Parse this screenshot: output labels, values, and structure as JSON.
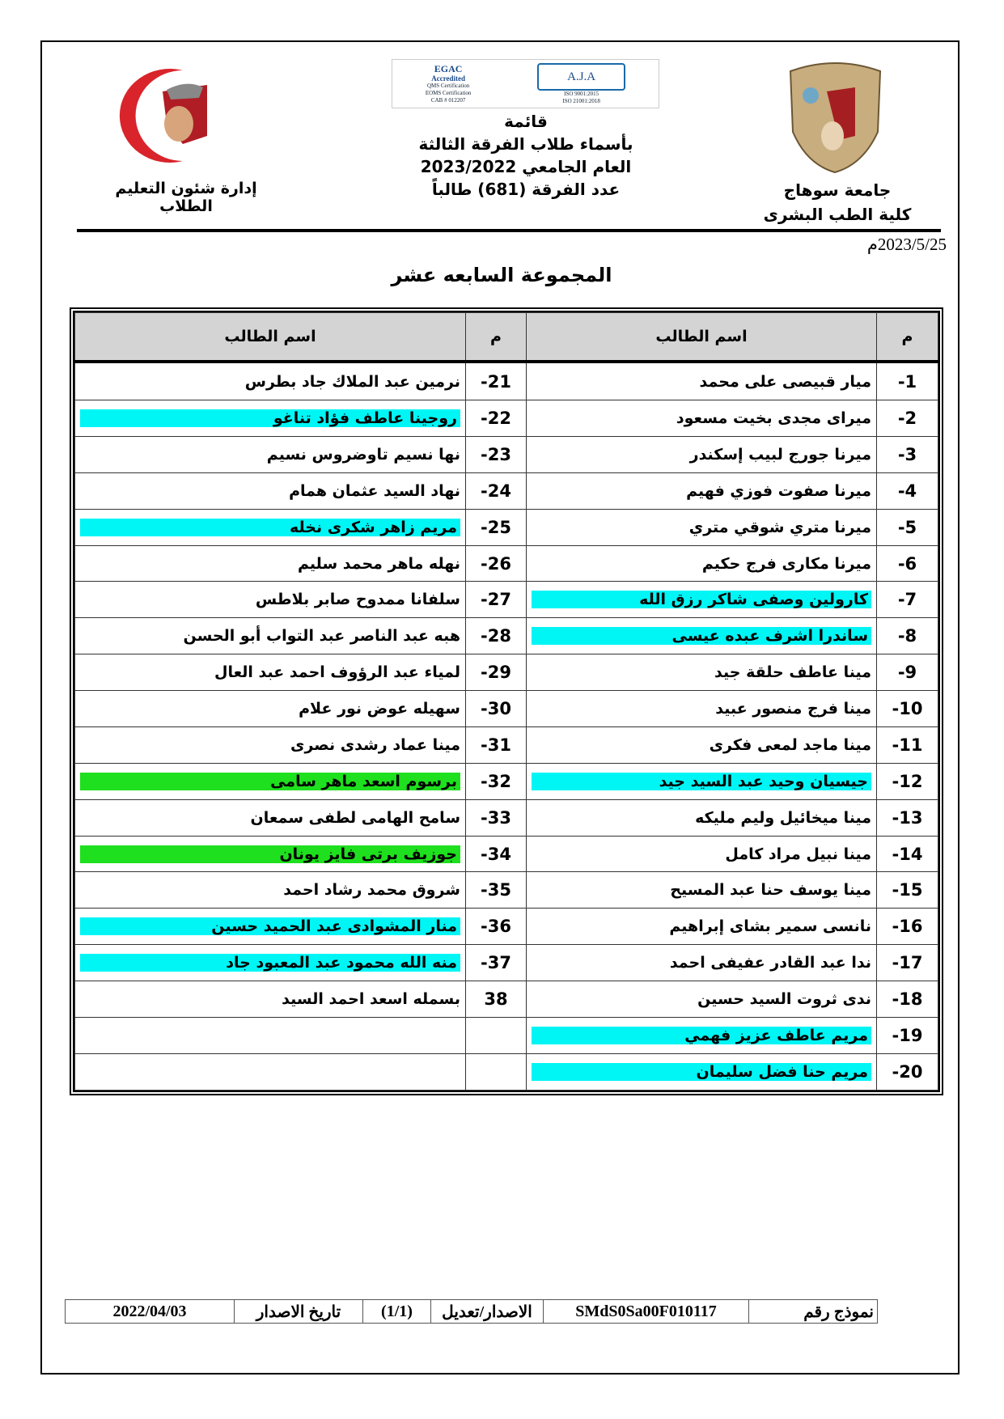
{
  "header": {
    "right_logo_text": "جامعة سوهاج",
    "right_line1": "جامعة سوهاج",
    "right_line2": "كلية الطب البشرى",
    "left_logo_text": "جامعة سوهاج كلية الطب",
    "left_line": "إدارة شئون التعليم الطلاب",
    "cert_left": [
      "EGAC",
      "Accredited",
      "QMS Certification",
      "EOMS Certification",
      "CAB # 012207"
    ],
    "cert_right": [
      "A.J.A",
      "ISO 9001:2015",
      "ISO 21001:2018"
    ],
    "title_lines": [
      "قائمة",
      "بأسماء طلاب الفرقة الثالثة",
      "العام الجامعي 2023/2022",
      "عدد الفرقة (681) طالباً"
    ],
    "date": "2023/5/25م"
  },
  "group_title": "المجموعة السابعه عشر",
  "table": {
    "headers": {
      "num": "م",
      "name": "اسم الطالب"
    },
    "highlight_colors": {
      "cyan": "#00f5f5",
      "green": "#1ee01e"
    },
    "right_column": [
      {
        "num": "-1",
        "name": "ميار قبيصى على محمد"
      },
      {
        "num": "-2",
        "name": "ميراى مجدى بخيت مسعود"
      },
      {
        "num": "-3",
        "name": "ميرنا جورج لبيب إسكندر"
      },
      {
        "num": "-4",
        "name": "ميرنا صفوت فوزي فهيم"
      },
      {
        "num": "-5",
        "name": "ميرنا متري شوقي متري"
      },
      {
        "num": "-6",
        "name": "ميرنا مكارى فرج حكيم"
      },
      {
        "num": "-7",
        "name": "كارولين وصفى شاكر رزق الله",
        "hl": "cyan"
      },
      {
        "num": "-8",
        "name": "ساندرا اشرف عبده عيسى",
        "hl": "cyan"
      },
      {
        "num": "-9",
        "name": "مينا عاطف حلقة جيد"
      },
      {
        "num": "-10",
        "name": "مينا فرج منصور عبيد"
      },
      {
        "num": "-11",
        "name": "مينا ماجد لمعى فكرى"
      },
      {
        "num": "-12",
        "name": "جيسيان وحيد عبد السيد جيد",
        "hl": "cyan"
      },
      {
        "num": "-13",
        "name": "مينا ميخائيل وليم مليكه"
      },
      {
        "num": "-14",
        "name": "مينا نبيل مراد كامل"
      },
      {
        "num": "-15",
        "name": "مينا يوسف حنا عبد المسيح"
      },
      {
        "num": "-16",
        "name": "نانسى سمير بشاى إبراهيم"
      },
      {
        "num": "-17",
        "name": "ندا عبد القادر عفيفى احمد"
      },
      {
        "num": "-18",
        "name": "ندى ثروت السيد حسين"
      },
      {
        "num": "-19",
        "name": "مريم عاطف عزيز فهمي",
        "hl": "cyan"
      },
      {
        "num": "-20",
        "name": "مريم حنا فضل سليمان",
        "hl": "cyan"
      }
    ],
    "left_column": [
      {
        "num": "-21",
        "name": "نرمين عبد الملاك جاد بطرس"
      },
      {
        "num": "-22",
        "name": "روجينا عاطف فؤاد تناغو",
        "hl": "cyan"
      },
      {
        "num": "-23",
        "name": "نها نسيم تاوضروس نسيم"
      },
      {
        "num": "-24",
        "name": "نهاد السيد عثمان همام"
      },
      {
        "num": "-25",
        "name": "مريم زاهر شكرى نخله",
        "hl": "cyan"
      },
      {
        "num": "-26",
        "name": "نهله ماهر محمد سليم"
      },
      {
        "num": "-27",
        "name": "سلفانا ممدوح صابر بلاطس"
      },
      {
        "num": "-28",
        "name": "هبه عبد الناصر عبد التواب أبو الحسن"
      },
      {
        "num": "-29",
        "name": "لمياء عبد الرؤوف احمد عبد العال"
      },
      {
        "num": "-30",
        "name": "سهيله عوض نور علام"
      },
      {
        "num": "-31",
        "name": "مينا عماد رشدى نصرى"
      },
      {
        "num": "-32",
        "name": "برسوم اسعد ماهر سامى",
        "hl": "green"
      },
      {
        "num": "-33",
        "name": "سامح الهامى لطفى سمعان"
      },
      {
        "num": "-34",
        "name": "جوزيف برتى فايز يونان",
        "hl": "green"
      },
      {
        "num": "-35",
        "name": "شروق محمد رشاد احمد"
      },
      {
        "num": "-36",
        "name": "منار المشوادى عبد الحميد حسين",
        "hl": "cyan"
      },
      {
        "num": "-37",
        "name": "منه الله محمود عبد المعبود جاد",
        "hl": "cyan"
      },
      {
        "num": "38",
        "name": "بسمله اسعد احمد السيد"
      },
      {
        "num": "",
        "name": ""
      },
      {
        "num": "",
        "name": ""
      }
    ]
  },
  "footer": {
    "form_label": "نموذج رقم",
    "form_number": "SMdS0Sa00F010117",
    "edition_label": "الاصدار/تعديل",
    "edition_value": "(1/1)",
    "issue_label": "تاريخ الاصدار",
    "issue_date": "2022/04/03"
  }
}
